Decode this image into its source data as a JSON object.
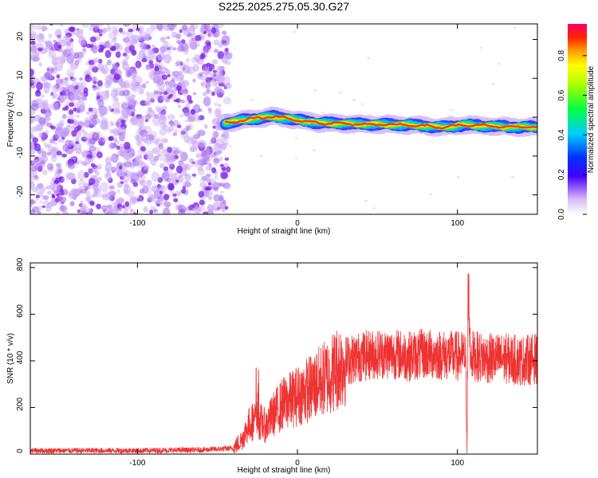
{
  "title": "S225.2025.275.05.30.G27",
  "colors": {
    "speckle": "#7a1fe6",
    "speckle_light": "#c9a6f4",
    "snr_line": "#ee3333",
    "axis": "#000000"
  },
  "chart_data": [
    {
      "type": "heatmap",
      "name": "spectrogram",
      "xlabel": "Height of straight line (km)",
      "ylabel": "Frequency (Hz)",
      "xlim": [
        -167,
        150
      ],
      "ylim": [
        -25,
        24
      ],
      "xticks": [
        -100,
        0,
        100
      ],
      "xtick_labels": [
        "-100",
        "0",
        "100"
      ],
      "yticks": [
        -20,
        -10,
        0,
        10,
        20
      ],
      "ytick_labels": [
        "-20",
        "-10",
        "0",
        "10",
        "20"
      ],
      "noise_region_x": [
        -167,
        -45
      ],
      "signal_track": [
        {
          "x": -45,
          "f": -1.5
        },
        {
          "x": -30,
          "f": -0.5
        },
        {
          "x": -15,
          "f": 0.2
        },
        {
          "x": 0,
          "f": -0.8
        },
        {
          "x": 15,
          "f": -1.5
        },
        {
          "x": 40,
          "f": -1.8
        },
        {
          "x": 70,
          "f": -2.0
        },
        {
          "x": 90,
          "f": -2.6
        },
        {
          "x": 105,
          "f": -2.0
        },
        {
          "x": 130,
          "f": -2.5
        },
        {
          "x": 150,
          "f": -2.6
        }
      ],
      "colorbar": {
        "label": "Normalized spectral amplitude",
        "range": [
          0,
          0.96
        ],
        "ticks": [
          0.0,
          0.2,
          0.4,
          0.6,
          0.8
        ],
        "tick_labels": [
          "0.0",
          "0.2",
          "0.4",
          "0.6",
          "0.8"
        ]
      }
    },
    {
      "type": "line",
      "name": "snr",
      "xlabel": "Height of straight line (km)",
      "ylabel": "SNR (10 * v/v)",
      "xlim": [
        -167,
        150
      ],
      "ylim": [
        0,
        820
      ],
      "xticks": [
        -100,
        0,
        100
      ],
      "xtick_labels": [
        "-100",
        "0",
        "100"
      ],
      "yticks": [
        0,
        200,
        400,
        600,
        800
      ],
      "ytick_labels": [
        "0",
        "200",
        "400",
        "600",
        "800"
      ],
      "series": [
        {
          "name": "SNR",
          "x": [
            -167,
            -100,
            -60,
            -40,
            -35,
            -30,
            -25,
            -20,
            -15,
            -10,
            0,
            10,
            20,
            30,
            40,
            50,
            60,
            70,
            80,
            90,
            100,
            105,
            106,
            107,
            108,
            110,
            120,
            130,
            140,
            150
          ],
          "y": [
            15,
            15,
            18,
            25,
            60,
            130,
            150,
            120,
            170,
            210,
            250,
            290,
            340,
            400,
            420,
            430,
            430,
            420,
            430,
            425,
            420,
            420,
            100,
            760,
            430,
            420,
            410,
            410,
            400,
            410
          ]
        }
      ]
    }
  ]
}
